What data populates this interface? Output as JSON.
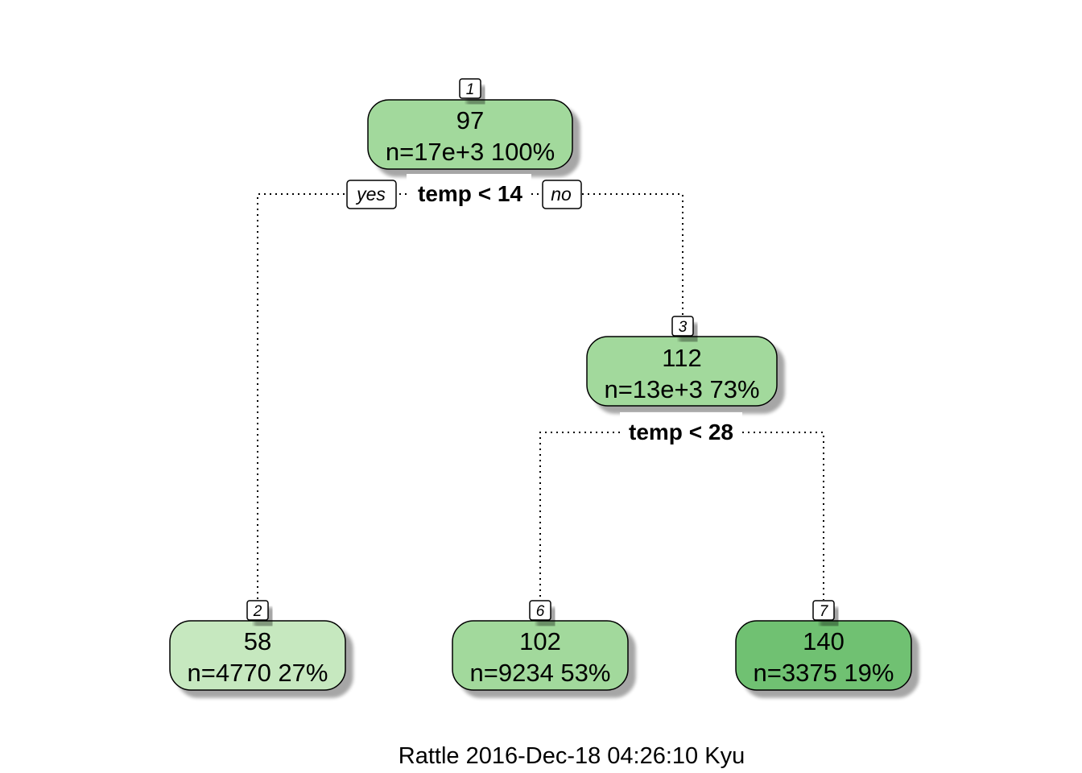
{
  "tree": {
    "nodes": [
      {
        "id": "1",
        "value": "97",
        "stats": "n=17e+3  100%",
        "fill": "#a2d99c"
      },
      {
        "id": "3",
        "value": "112",
        "stats": "n=13e+3  73%",
        "fill": "#a2d99c"
      },
      {
        "id": "2",
        "value": "58",
        "stats": "n=4770  27%",
        "fill": "#c6e8bf"
      },
      {
        "id": "6",
        "value": "102",
        "stats": "n=9234  53%",
        "fill": "#a2d99c"
      },
      {
        "id": "7",
        "value": "140",
        "stats": "n=3375  19%",
        "fill": "#6fc172"
      }
    ],
    "splits": [
      {
        "node": "1",
        "label": "temp < 14"
      },
      {
        "node": "3",
        "label": "temp < 28"
      }
    ],
    "branch_labels": {
      "yes": "yes",
      "no": "no"
    }
  },
  "caption": "Rattle 2016-Dec-18 04:26:10 Kyu"
}
